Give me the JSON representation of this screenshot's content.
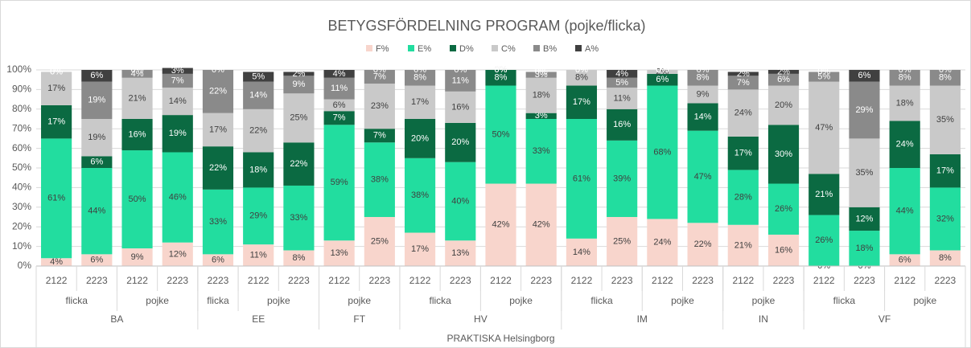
{
  "chart_data": {
    "type": "stacked_bar",
    "title": "BETYGSFÖRDELNING PROGRAM (pojke/flicka)",
    "categories": [
      "2122",
      "2223",
      "2122",
      "2223",
      "2223",
      "2122",
      "2223",
      "2122",
      "2223",
      "2122",
      "2223",
      "2122",
      "2223",
      "2122",
      "2223",
      "2122",
      "2223",
      "2122",
      "2223",
      "2122",
      "2223",
      "2122",
      "2223"
    ],
    "gender_groups": [
      {
        "label": "flicka",
        "count": 2
      },
      {
        "label": "pojke",
        "count": 2
      },
      {
        "label": "flicka",
        "count": 1
      },
      {
        "label": "pojke",
        "count": 2
      },
      {
        "label": "pojke",
        "count": 2
      },
      {
        "label": "flicka",
        "count": 2
      },
      {
        "label": "pojke",
        "count": 2
      },
      {
        "label": "flicka",
        "count": 2
      },
      {
        "label": "pojke",
        "count": 2
      },
      {
        "label": "pojke",
        "count": 2
      },
      {
        "label": "flicka",
        "count": 2
      },
      {
        "label": "pojke",
        "count": 2
      }
    ],
    "program_groups": [
      {
        "label": "BA",
        "count": 4
      },
      {
        "label": "EE",
        "count": 3
      },
      {
        "label": "FT",
        "count": 2
      },
      {
        "label": "HV",
        "count": 4
      },
      {
        "label": "IM",
        "count": 4
      },
      {
        "label": "IN",
        "count": 2
      },
      {
        "label": "VF",
        "count": 4
      }
    ],
    "school": "PRAKTISKA Helsingborg",
    "series": [
      {
        "name": "F%",
        "color": "#f8d5cc",
        "label_color": "#404040",
        "values": [
          4,
          6,
          9,
          12,
          6,
          11,
          8,
          13,
          25,
          17,
          13,
          42,
          42,
          14,
          25,
          24,
          22,
          21,
          16,
          0,
          0,
          6,
          8
        ],
        "value_labels": [
          "4%",
          "6%",
          "9%",
          "12%",
          "6%",
          "11%",
          "8%",
          "13%",
          "25%",
          "17%",
          "13%",
          "42%",
          "42%",
          "14%",
          "25%",
          "24%",
          "22%",
          "21%",
          "16%",
          "0%",
          "0%",
          "6%",
          "8%"
        ]
      },
      {
        "name": "E%",
        "color": "#22dd9f",
        "label_color": "#404040",
        "values": [
          61,
          44,
          50,
          46,
          33,
          29,
          33,
          59,
          38,
          38,
          40,
          50,
          33,
          61,
          39,
          68,
          47,
          28,
          26,
          26,
          18,
          44,
          32
        ],
        "value_labels": [
          "61%",
          "44%",
          "50%",
          "46%",
          "33%",
          "29%",
          "33%",
          "59%",
          "38%",
          "38%",
          "40%",
          "50%",
          "33%",
          "61%",
          "39%",
          "68%",
          "47%",
          "28%",
          "26%",
          "26%",
          "18%",
          "44%",
          "32%"
        ]
      },
      {
        "name": "D%",
        "color": "#0b6a42",
        "label_color": "#ffffff",
        "values": [
          17,
          6,
          16,
          19,
          22,
          18,
          22,
          7,
          7,
          20,
          20,
          8,
          3,
          17,
          16,
          6,
          14,
          17,
          30,
          21,
          12,
          24,
          17
        ],
        "value_labels": [
          "17%",
          "6%",
          "16%",
          "19%",
          "22%",
          "18%",
          "22%",
          "7%",
          "7%",
          "20%",
          "20%",
          "8%",
          "3%",
          "17%",
          "16%",
          "6%",
          "14%",
          "17%",
          "30%",
          "21%",
          "12%",
          "24%",
          "17%"
        ]
      },
      {
        "name": "C%",
        "color": "#c9c9c9",
        "label_color": "#404040",
        "values": [
          17,
          19,
          21,
          14,
          17,
          22,
          25,
          6,
          23,
          17,
          16,
          0,
          18,
          8,
          11,
          2,
          9,
          24,
          20,
          47,
          35,
          18,
          35
        ],
        "value_labels": [
          "17%",
          "19%",
          "21%",
          "14%",
          "17%",
          "22%",
          "25%",
          "6%",
          "23%",
          "17%",
          "16%",
          "0%",
          "18%",
          "8%",
          "11%",
          "2%",
          "9%",
          "24%",
          "20%",
          "47%",
          "35%",
          "18%",
          "35%"
        ]
      },
      {
        "name": "B%",
        "color": "#8a8a8a",
        "label_color": "#ffffff",
        "values": [
          0,
          19,
          4,
          7,
          22,
          14,
          9,
          11,
          7,
          8,
          11,
          0,
          3,
          0,
          5,
          0,
          8,
          7,
          6,
          5,
          29,
          8,
          8
        ],
        "value_labels": [
          "0%",
          "19%",
          "4%",
          "7%",
          "22%",
          "14%",
          "9%",
          "11%",
          "7%",
          "8%",
          "11%",
          "0%",
          "3%",
          "0%",
          "5%",
          "0%",
          "8%",
          "7%",
          "6%",
          "5%",
          "29%",
          "8%",
          "8%"
        ]
      },
      {
        "name": "A%",
        "color": "#404040",
        "label_color": "#ffffff",
        "values": [
          0,
          6,
          0,
          3,
          0,
          5,
          2,
          4,
          0,
          0,
          0,
          0,
          0,
          0,
          4,
          0,
          0,
          2,
          2,
          0,
          6,
          0,
          0
        ],
        "value_labels": [
          "0%",
          "6%",
          "0%",
          "3%",
          "0%",
          "5%",
          "2%",
          "4%",
          "0%",
          "0%",
          "0%",
          "0%",
          "0%",
          "0%",
          "4%",
          "0%",
          "0%",
          "2%",
          "2%",
          "0%",
          "6%",
          "0%",
          "0%"
        ]
      }
    ],
    "ylim": [
      0,
      100
    ],
    "yticks": [
      {
        "value": 0,
        "label": "0%"
      },
      {
        "value": 10,
        "label": "10%"
      },
      {
        "value": 20,
        "label": "20%"
      },
      {
        "value": 30,
        "label": "30%"
      },
      {
        "value": 40,
        "label": "40%"
      },
      {
        "value": 50,
        "label": "50%"
      },
      {
        "value": 60,
        "label": "60%"
      },
      {
        "value": 70,
        "label": "70%"
      },
      {
        "value": 80,
        "label": "80%"
      },
      {
        "value": 90,
        "label": "90%"
      },
      {
        "value": 100,
        "label": "100%"
      }
    ],
    "grid": true,
    "legend": "top"
  }
}
